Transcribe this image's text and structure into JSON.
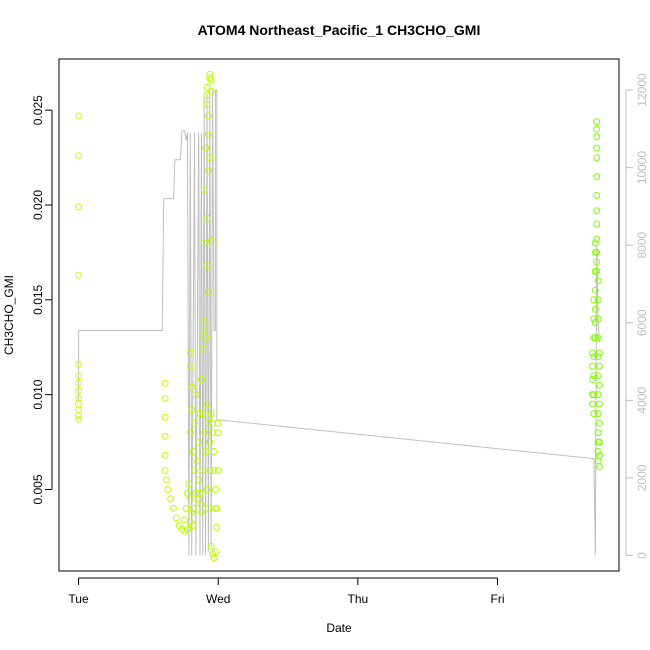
{
  "chart_data": {
    "type": "scatter",
    "title": "ATOM4 Northeast_Pacific_1 CH3CHO_GMI",
    "xlabel": "Date",
    "ylabel": "CH3CHO_GMI",
    "x_ticks": [
      "Tue",
      "Wed",
      "Thu",
      "Fri"
    ],
    "x_tick_days": [
      0,
      1,
      2,
      3
    ],
    "xlim_days": [
      -0.14,
      3.87
    ],
    "ylim": [
      0.0007,
      0.0277
    ],
    "y_ticks": [
      0.005,
      0.01,
      0.015,
      0.02,
      0.025
    ],
    "y_tick_labels": [
      "0.005",
      "0.010",
      "0.015",
      "0.020",
      "0.025"
    ],
    "y2_ylim": [
      -400,
      12800
    ],
    "y2_ticks": [
      0,
      2000,
      4000,
      6000,
      8000,
      10000,
      12000
    ],
    "y2_tick_labels": [
      "0",
      "2000",
      "4000",
      "6000",
      "8000",
      "10000",
      "12000"
    ],
    "grid": false,
    "legend": "none",
    "point_color_start": "#ccff00",
    "point_color_end": "#80ff00",
    "secondary_line_color": "#bebebe",
    "series": [
      {
        "marker": "open-circle",
        "points": [
          [
            0.0,
            0.0247
          ],
          [
            0.0,
            0.0226
          ],
          [
            0.0,
            0.0199
          ],
          [
            0.0,
            0.0163
          ],
          [
            0.0,
            0.0116
          ],
          [
            0.0,
            0.011
          ],
          [
            0.0,
            0.0106
          ],
          [
            0.0,
            0.0102
          ],
          [
            0.0,
            0.0098
          ],
          [
            0.0,
            0.0095
          ],
          [
            0.0,
            0.0092
          ],
          [
            0.0,
            0.0089
          ],
          [
            0.0,
            0.0087
          ],
          [
            0.62,
            0.0106
          ],
          [
            0.62,
            0.0098
          ],
          [
            0.62,
            0.0088
          ],
          [
            0.62,
            0.0078
          ],
          [
            0.62,
            0.0068
          ],
          [
            0.62,
            0.006
          ],
          [
            0.63,
            0.0055
          ],
          [
            0.64,
            0.005
          ],
          [
            0.66,
            0.0045
          ],
          [
            0.68,
            0.004
          ],
          [
            0.7,
            0.0035
          ],
          [
            0.72,
            0.0031
          ],
          [
            0.74,
            0.0029
          ],
          [
            0.76,
            0.0028
          ],
          [
            0.78,
            0.0029
          ],
          [
            0.8,
            0.0033
          ],
          [
            0.82,
            0.004
          ],
          [
            0.84,
            0.0048
          ],
          [
            0.86,
            0.0045
          ],
          [
            0.88,
            0.0038
          ],
          [
            0.8,
            0.0045
          ],
          [
            0.81,
            0.0038
          ],
          [
            0.82,
            0.0031
          ],
          [
            0.78,
            0.0048
          ],
          [
            0.77,
            0.004
          ],
          [
            0.76,
            0.0034
          ],
          [
            0.79,
            0.0053
          ],
          [
            0.83,
            0.006
          ],
          [
            0.8,
            0.008
          ],
          [
            0.81,
            0.0092
          ],
          [
            0.81,
            0.0104
          ],
          [
            0.8,
            0.0115
          ],
          [
            0.8,
            0.0122
          ],
          [
            0.82,
            0.007
          ],
          [
            0.83,
            0.0085
          ],
          [
            0.84,
            0.01
          ],
          [
            0.85,
            0.0065
          ],
          [
            0.86,
            0.0075
          ],
          [
            0.87,
            0.009
          ],
          [
            0.88,
            0.0108
          ],
          [
            0.89,
            0.0124
          ],
          [
            0.9,
            0.0134
          ],
          [
            0.9,
            0.0139
          ],
          [
            0.91,
            0.013
          ],
          [
            0.89,
            0.009
          ],
          [
            0.9,
            0.008
          ],
          [
            0.91,
            0.007
          ],
          [
            0.86,
            0.0055
          ],
          [
            0.87,
            0.0048
          ],
          [
            0.88,
            0.0042
          ],
          [
            0.89,
            0.006
          ],
          [
            0.92,
            0.0095
          ],
          [
            0.93,
            0.0085
          ],
          [
            0.94,
            0.0075
          ],
          [
            0.92,
            0.005
          ],
          [
            0.93,
            0.004
          ],
          [
            0.94,
            0.006
          ],
          [
            0.9,
            0.0208
          ],
          [
            0.9,
            0.018
          ],
          [
            0.91,
            0.023
          ],
          [
            0.92,
            0.0168
          ],
          [
            0.93,
            0.0154
          ],
          [
            0.92,
            0.0193
          ],
          [
            0.93,
            0.0218
          ],
          [
            0.92,
            0.0262
          ],
          [
            0.92,
            0.0258
          ],
          [
            0.92,
            0.0253
          ],
          [
            0.93,
            0.0247
          ],
          [
            0.93,
            0.0237
          ],
          [
            0.94,
            0.0267
          ],
          [
            0.94,
            0.0269
          ],
          [
            0.95,
            0.0266
          ],
          [
            0.95,
            0.026
          ],
          [
            0.94,
            0.0225
          ],
          [
            0.95,
            0.0181
          ],
          [
            0.95,
            0.009
          ],
          [
            0.96,
            0.0085
          ],
          [
            0.96,
            0.008
          ],
          [
            0.97,
            0.007
          ],
          [
            0.97,
            0.006
          ],
          [
            0.98,
            0.005
          ],
          [
            0.98,
            0.004
          ],
          [
            0.99,
            0.003
          ],
          [
            0.95,
            0.002
          ],
          [
            0.96,
            0.0016
          ],
          [
            0.97,
            0.0014
          ],
          [
            0.98,
            0.0017
          ],
          [
            0.99,
            0.004
          ],
          [
            1.0,
            0.006
          ],
          [
            1.0,
            0.008
          ],
          [
            1.0,
            0.0085
          ],
          [
            3.68,
            0.0122
          ],
          [
            3.68,
            0.0115
          ],
          [
            3.68,
            0.0108
          ],
          [
            3.68,
            0.01
          ],
          [
            3.68,
            0.0095
          ],
          [
            3.69,
            0.015
          ],
          [
            3.69,
            0.014
          ],
          [
            3.69,
            0.013
          ],
          [
            3.69,
            0.012
          ],
          [
            3.69,
            0.011
          ],
          [
            3.69,
            0.01
          ],
          [
            3.69,
            0.009
          ],
          [
            3.7,
            0.018
          ],
          [
            3.7,
            0.0175
          ],
          [
            3.7,
            0.0165
          ],
          [
            3.7,
            0.0155
          ],
          [
            3.7,
            0.0145
          ],
          [
            3.7,
            0.0138
          ],
          [
            3.7,
            0.013
          ],
          [
            3.71,
            0.0244
          ],
          [
            3.71,
            0.024
          ],
          [
            3.71,
            0.0236
          ],
          [
            3.71,
            0.023
          ],
          [
            3.71,
            0.0225
          ],
          [
            3.71,
            0.0215
          ],
          [
            3.71,
            0.0205
          ],
          [
            3.71,
            0.0197
          ],
          [
            3.71,
            0.019
          ],
          [
            3.71,
            0.0182
          ],
          [
            3.71,
            0.0175
          ],
          [
            3.71,
            0.017
          ],
          [
            3.71,
            0.0165
          ],
          [
            3.72,
            0.016
          ],
          [
            3.72,
            0.015
          ],
          [
            3.72,
            0.014
          ],
          [
            3.72,
            0.013
          ],
          [
            3.72,
            0.012
          ],
          [
            3.72,
            0.011
          ],
          [
            3.72,
            0.01
          ],
          [
            3.72,
            0.009
          ],
          [
            3.72,
            0.008
          ],
          [
            3.72,
            0.0075
          ],
          [
            3.72,
            0.007
          ],
          [
            3.72,
            0.0065
          ],
          [
            3.73,
            0.0062
          ],
          [
            3.73,
            0.0068
          ],
          [
            3.73,
            0.0075
          ],
          [
            3.73,
            0.0085
          ],
          [
            3.73,
            0.0095
          ],
          [
            3.73,
            0.0105
          ],
          [
            3.73,
            0.0115
          ],
          [
            3.73,
            0.0122
          ]
        ]
      },
      {
        "name": "",
        "axis": "right",
        "type": "line",
        "points": [
          [
            0.0,
            3950
          ],
          [
            0.0,
            5800
          ],
          [
            0.6,
            5800
          ],
          [
            0.61,
            9200
          ],
          [
            0.68,
            9200
          ],
          [
            0.69,
            10200
          ],
          [
            0.73,
            10200
          ],
          [
            0.74,
            10950
          ],
          [
            0.76,
            10950
          ],
          [
            0.77,
            10700
          ],
          [
            0.78,
            10900
          ],
          [
            0.79,
            0
          ],
          [
            0.8,
            10900
          ],
          [
            0.81,
            0
          ],
          [
            0.83,
            10900
          ],
          [
            0.84,
            0
          ],
          [
            0.86,
            10900
          ],
          [
            0.87,
            0
          ],
          [
            0.88,
            10900
          ],
          [
            0.89,
            0
          ],
          [
            0.9,
            11800
          ],
          [
            0.91,
            0
          ],
          [
            0.92,
            11900
          ],
          [
            0.93,
            100
          ],
          [
            0.94,
            12000
          ],
          [
            0.95,
            200
          ],
          [
            0.96,
            12000
          ],
          [
            0.97,
            5800
          ],
          [
            0.98,
            5800
          ],
          [
            0.98,
            12000
          ],
          [
            0.99,
            12000
          ],
          [
            0.99,
            3500
          ],
          [
            3.68,
            2500
          ],
          [
            3.69,
            2500
          ],
          [
            3.7,
            0
          ],
          [
            3.71,
            8000
          ],
          [
            3.72,
            6000
          ],
          [
            3.73,
            5500
          ]
        ]
      }
    ]
  }
}
